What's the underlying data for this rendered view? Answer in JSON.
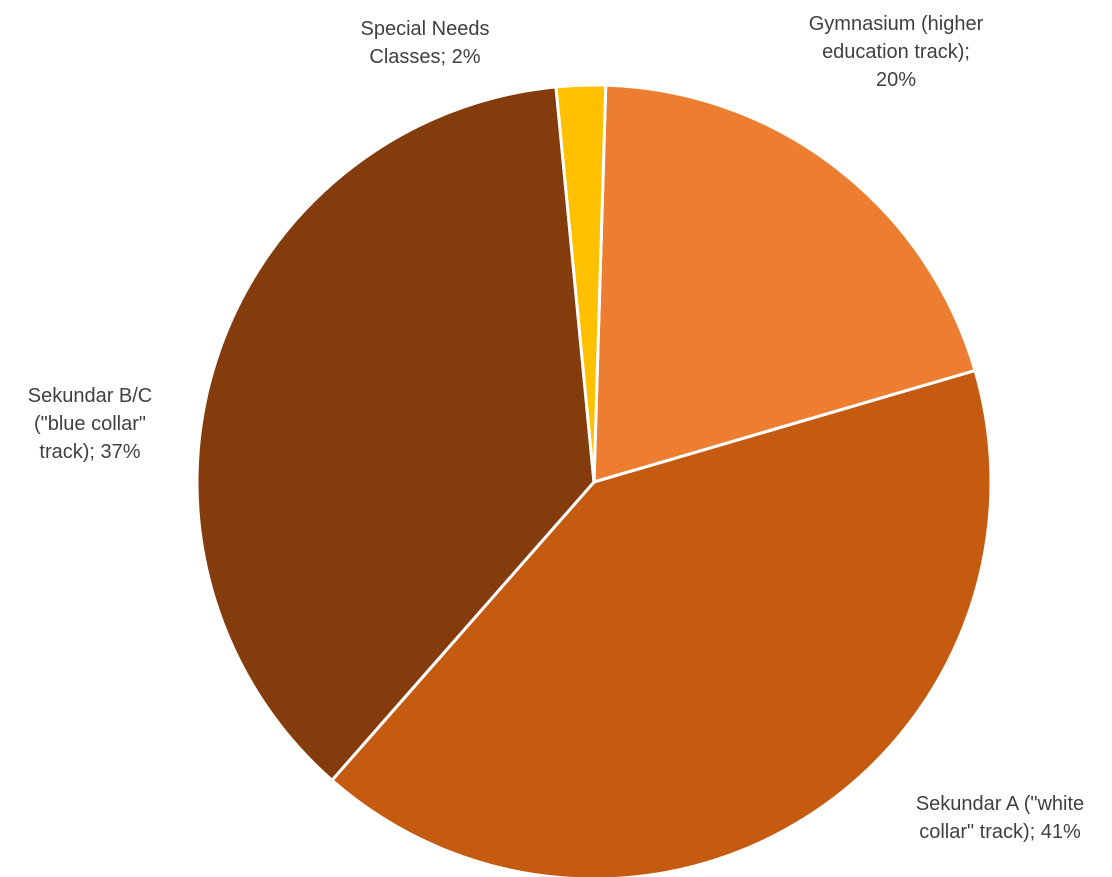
{
  "chart_data": {
    "type": "pie",
    "title": "",
    "legend": "none",
    "data_labels_show": "category; percentage",
    "slices": [
      {
        "category": "Gymnasium (higher education track)",
        "percent": 20,
        "color": "#ED7D31",
        "label_lines": [
          "Gymnasium (higher",
          "education track);",
          "20%"
        ]
      },
      {
        "category": "Sekundar A (\"white collar\" track)",
        "percent": 41,
        "color": "#C55A11",
        "label_lines": [
          "Sekundar A (\"white",
          "collar\" track); 41%"
        ]
      },
      {
        "category": "Sekundar B/C (\"blue collar\" track)",
        "percent": 37,
        "color": "#843C0C",
        "label_lines": [
          "Sekundar B/C",
          "(\"blue collar\"",
          "track); 37%"
        ]
      },
      {
        "category": "Special Needs Classes",
        "percent": 2,
        "color": "#FFC000",
        "label_lines": [
          "Special Needs",
          "Classes; 2%"
        ]
      }
    ]
  }
}
